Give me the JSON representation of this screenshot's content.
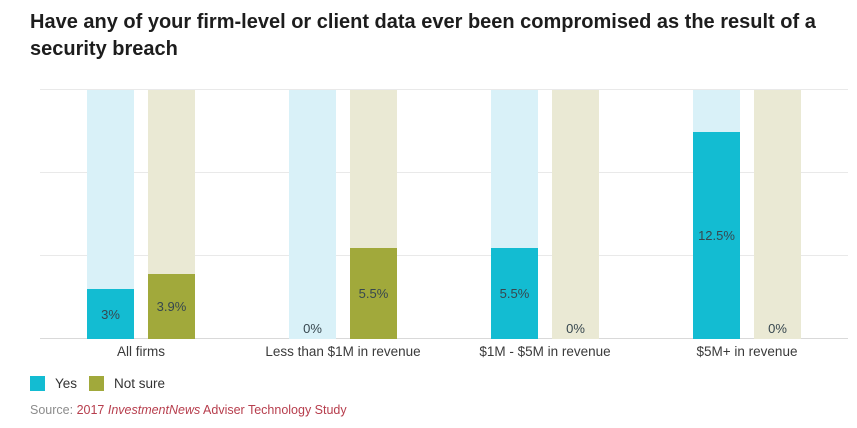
{
  "title": "Have any of your firm-level or client data ever been compromised as the result of a security breach",
  "colors": {
    "yes": "#13bcd2",
    "yes_track": "#d9f1f8",
    "not_sure": "#a1a93b",
    "not_sure_track": "#eae9d4",
    "gridline": "#e9e9e9",
    "source_accent": "#b73e4d",
    "value_label": "#37474f"
  },
  "legend": [
    {
      "label": "Yes",
      "color": "#13bcd2"
    },
    {
      "label": "Not sure",
      "color": "#a1a93b"
    }
  ],
  "source": {
    "prefix": "Source: ",
    "year": "2017 ",
    "publication": "InvestmentNews",
    "rest": " Adviser Technology Study"
  },
  "chart_data": {
    "type": "bar",
    "categories": [
      "All firms",
      "Less than $1M in revenue",
      "$1M - $5M in revenue",
      "$5M+ in revenue"
    ],
    "series": [
      {
        "name": "Yes",
        "color": "#13bcd2",
        "track_color": "#d9f1f8",
        "values": [
          3,
          0,
          5.5,
          12.5
        ],
        "labels": [
          "3%",
          "0%",
          "5.5%",
          "12.5%"
        ]
      },
      {
        "name": "Not sure",
        "color": "#a1a93b",
        "track_color": "#eae9d4",
        "values": [
          3.9,
          5.5,
          0,
          0
        ],
        "labels": [
          "3.9%",
          "5.5%",
          "0%",
          "0%"
        ]
      }
    ],
    "title": "Have any of your firm-level or client data ever been compromised as the result of a security breach",
    "xlabel": "",
    "ylabel": "",
    "ylim": [
      0,
      15
    ],
    "gridlines": [
      0,
      5,
      10,
      15
    ],
    "grid": true,
    "y_axis_labels_visible": false,
    "legend_position": "bottom-left",
    "track_background": true
  }
}
